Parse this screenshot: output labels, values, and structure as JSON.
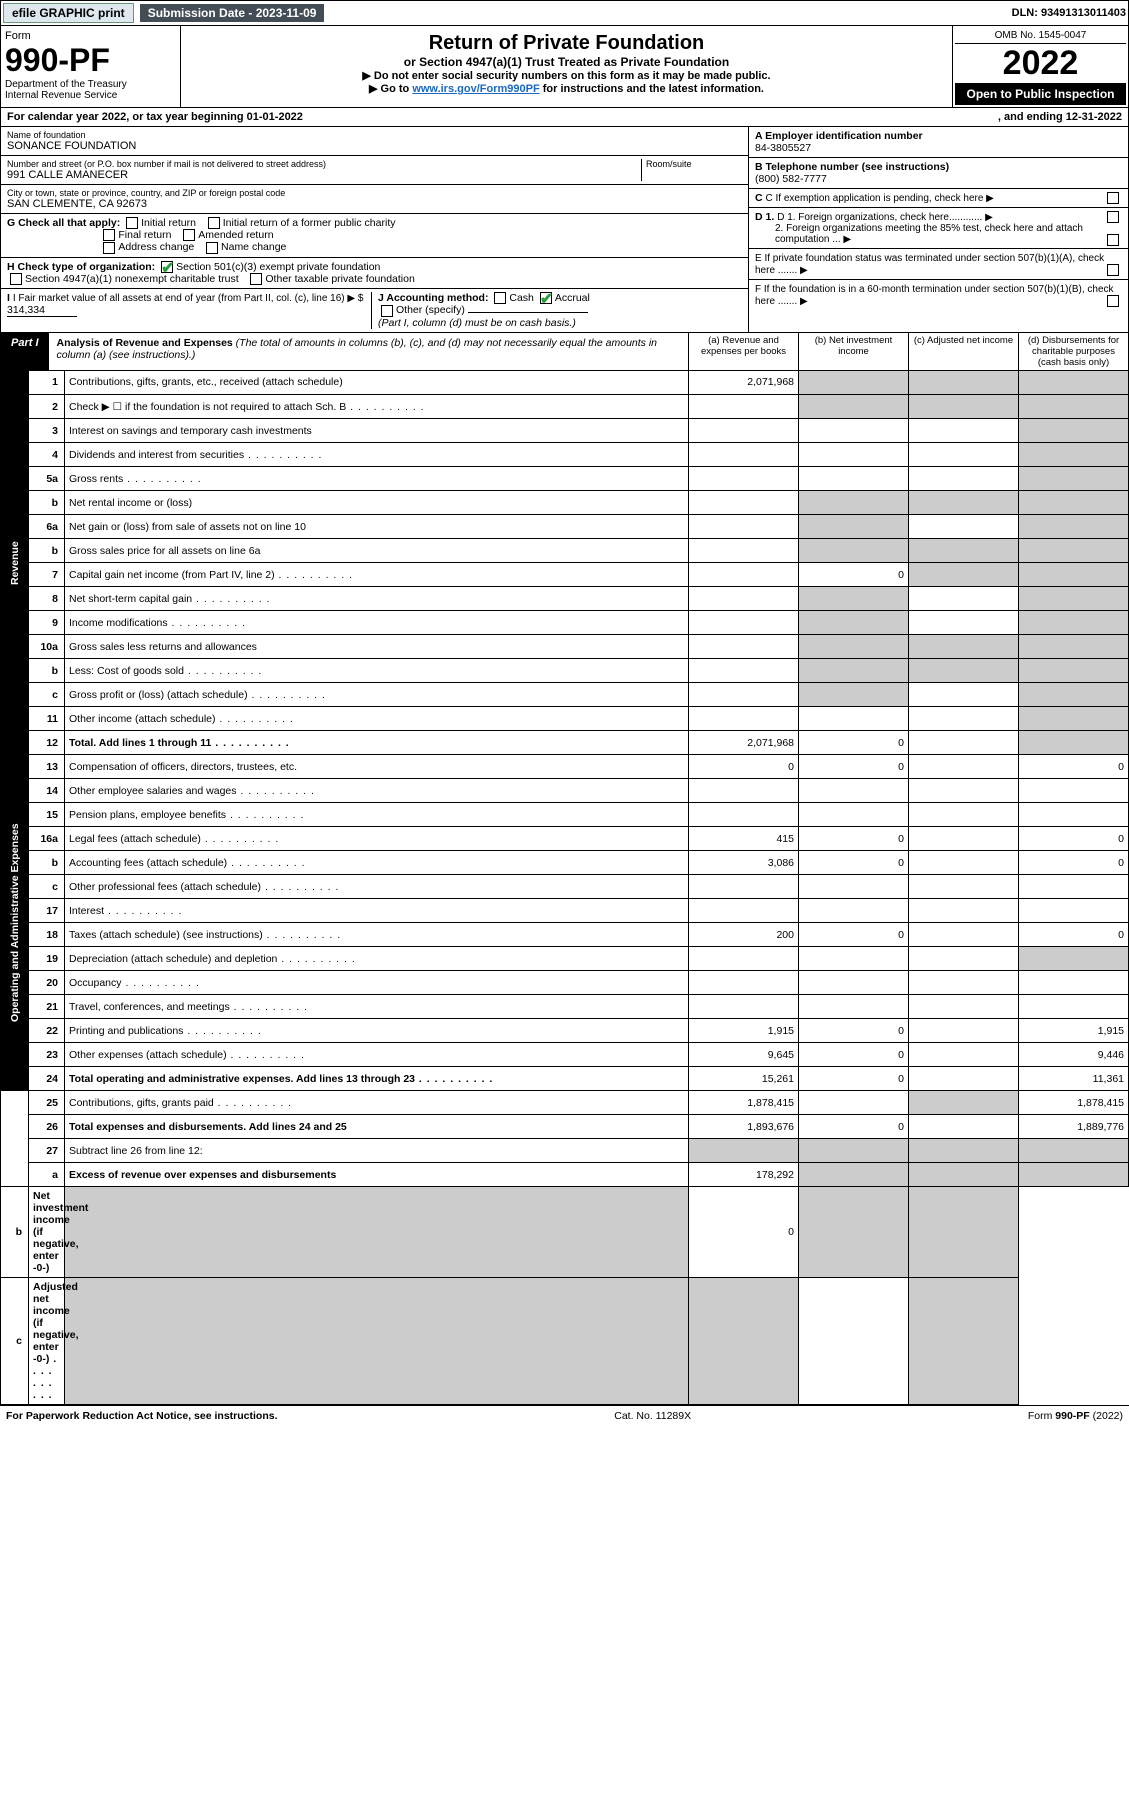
{
  "topbar": {
    "efile": "efile GRAPHIC print",
    "subdate_label": "Submission Date - 2023-11-09",
    "dln": "DLN: 93491313011403"
  },
  "header": {
    "form_label": "Form",
    "form_no": "990-PF",
    "dept1": "Department of the Treasury",
    "dept2": "Internal Revenue Service",
    "title": "Return of Private Foundation",
    "subtitle": "or Section 4947(a)(1) Trust Treated as Private Foundation",
    "note1": "▶ Do not enter social security numbers on this form as it may be made public.",
    "note2_pre": "▶ Go to ",
    "note2_link": "www.irs.gov/Form990PF",
    "note2_post": " for instructions and the latest information.",
    "omb": "OMB No. 1545-0047",
    "year": "2022",
    "open": "Open to Public Inspection"
  },
  "calendar": {
    "text_l": "For calendar year 2022, or tax year beginning 01-01-2022",
    "text_r": ", and ending 12-31-2022"
  },
  "entity": {
    "name_label": "Name of foundation",
    "name": "SONANCE FOUNDATION",
    "addr_label": "Number and street (or P.O. box number if mail is not delivered to street address)",
    "addr": "991 CALLE AMANECER",
    "room_label": "Room/suite",
    "city_label": "City or town, state or province, country, and ZIP or foreign postal code",
    "city": "SAN CLEMENTE, CA  92673",
    "g_label": "G Check all that apply:",
    "g1": "Initial return",
    "g2": "Final return",
    "g3": "Address change",
    "g4": "Initial return of a former public charity",
    "g5": "Amended return",
    "g6": "Name change",
    "h_label": "H Check type of organization:",
    "h1": "Section 501(c)(3) exempt private foundation",
    "h2": "Section 4947(a)(1) nonexempt charitable trust",
    "h3": "Other taxable private foundation",
    "i_label": "I Fair market value of all assets at end of year (from Part II, col. (c), line 16) ▶ $",
    "i_value": "314,334",
    "j_label": "J Accounting method:",
    "j1": "Cash",
    "j2": "Accrual",
    "j3": "Other (specify)",
    "j_note": "(Part I, column (d) must be on cash basis.)"
  },
  "right": {
    "a_label": "A Employer identification number",
    "a_value": "84-3805527",
    "b_label": "B Telephone number (see instructions)",
    "b_value": "(800) 582-7777",
    "c_label": "C If exemption application is pending, check here ▶",
    "d1": "D 1. Foreign organizations, check here............ ▶",
    "d2": "2. Foreign organizations meeting the 85% test, check here and attach computation ... ▶",
    "e_label": "E  If private foundation status was terminated under section 507(b)(1)(A), check here ....... ▶",
    "f_label": "F  If the foundation is in a 60-month termination under section 507(b)(1)(B), check here ....... ▶"
  },
  "part1": {
    "label": "Part I",
    "title": "Analysis of Revenue and Expenses",
    "desc": " (The total of amounts in columns (b), (c), and (d) may not necessarily equal the amounts in column (a) (see instructions).)",
    "col_a": "(a)  Revenue and expenses per books",
    "col_b": "(b)  Net investment income",
    "col_c": "(c)  Adjusted net income",
    "col_d": "(d)  Disbursements for charitable purposes (cash basis only)"
  },
  "sections": {
    "revenue": "Revenue",
    "expenses": "Operating and Administrative Expenses"
  },
  "rows": [
    {
      "n": "1",
      "d": "Contributions, gifts, grants, etc., received (attach schedule)",
      "a": "2,071,968",
      "a_shade": false,
      "b_shade": true,
      "c_shade": true,
      "d_shade": true
    },
    {
      "n": "2",
      "d": "Check ▶ ☐ if the foundation is not required to attach Sch. B",
      "dots": true,
      "b_shade": true,
      "c_shade": true,
      "d_shade": true
    },
    {
      "n": "3",
      "d": "Interest on savings and temporary cash investments",
      "d_shade": true
    },
    {
      "n": "4",
      "d": "Dividends and interest from securities",
      "dots": true,
      "d_shade": true
    },
    {
      "n": "5a",
      "d": "Gross rents",
      "dots": true,
      "d_shade": true
    },
    {
      "n": "b",
      "d": "Net rental income or (loss)",
      "b_shade": true,
      "c_shade": true,
      "d_shade": true
    },
    {
      "n": "6a",
      "d": "Net gain or (loss) from sale of assets not on line 10",
      "b_shade": true,
      "d_shade": true
    },
    {
      "n": "b",
      "d": "Gross sales price for all assets on line 6a",
      "b_shade": true,
      "c_shade": true,
      "d_shade": true
    },
    {
      "n": "7",
      "d": "Capital gain net income (from Part IV, line 2)",
      "dots": true,
      "b": "0",
      "c_shade": true,
      "d_shade": true
    },
    {
      "n": "8",
      "d": "Net short-term capital gain",
      "dots": true,
      "b_shade": true,
      "d_shade": true
    },
    {
      "n": "9",
      "d": "Income modifications",
      "dots": true,
      "b_shade": true,
      "d_shade": true
    },
    {
      "n": "10a",
      "d": "Gross sales less returns and allowances",
      "b_shade": true,
      "c_shade": true,
      "d_shade": true
    },
    {
      "n": "b",
      "d": "Less: Cost of goods sold",
      "dots": true,
      "b_shade": true,
      "c_shade": true,
      "d_shade": true
    },
    {
      "n": "c",
      "d": "Gross profit or (loss) (attach schedule)",
      "dots": true,
      "b_shade": true,
      "d_shade": true
    },
    {
      "n": "11",
      "d": "Other income (attach schedule)",
      "dots": true,
      "d_shade": true
    },
    {
      "n": "12",
      "d": "Total. Add lines 1 through 11",
      "dots": true,
      "bold": true,
      "a": "2,071,968",
      "b": "0",
      "d_shade": true
    },
    {
      "n": "13",
      "d": "Compensation of officers, directors, trustees, etc.",
      "a": "0",
      "b": "0",
      "dd": "0"
    },
    {
      "n": "14",
      "d": "Other employee salaries and wages",
      "dots": true
    },
    {
      "n": "15",
      "d": "Pension plans, employee benefits",
      "dots": true
    },
    {
      "n": "16a",
      "d": "Legal fees (attach schedule)",
      "dots": true,
      "a": "415",
      "b": "0",
      "dd": "0"
    },
    {
      "n": "b",
      "d": "Accounting fees (attach schedule)",
      "dots": true,
      "a": "3,086",
      "b": "0",
      "dd": "0"
    },
    {
      "n": "c",
      "d": "Other professional fees (attach schedule)",
      "dots": true
    },
    {
      "n": "17",
      "d": "Interest",
      "dots": true
    },
    {
      "n": "18",
      "d": "Taxes (attach schedule) (see instructions)",
      "dots": true,
      "a": "200",
      "b": "0",
      "dd": "0"
    },
    {
      "n": "19",
      "d": "Depreciation (attach schedule) and depletion",
      "dots": true,
      "d_shade": true
    },
    {
      "n": "20",
      "d": "Occupancy",
      "dots": true
    },
    {
      "n": "21",
      "d": "Travel, conferences, and meetings",
      "dots": true
    },
    {
      "n": "22",
      "d": "Printing and publications",
      "dots": true,
      "a": "1,915",
      "b": "0",
      "dd": "1,915"
    },
    {
      "n": "23",
      "d": "Other expenses (attach schedule)",
      "dots": true,
      "a": "9,645",
      "b": "0",
      "dd": "9,446"
    },
    {
      "n": "24",
      "d": "Total operating and administrative expenses. Add lines 13 through 23",
      "dots": true,
      "bold": true,
      "a": "15,261",
      "b": "0",
      "dd": "11,361"
    },
    {
      "n": "25",
      "d": "Contributions, gifts, grants paid",
      "dots": true,
      "a": "1,878,415",
      "c_shade": true,
      "dd": "1,878,415"
    },
    {
      "n": "26",
      "d": "Total expenses and disbursements. Add lines 24 and 25",
      "bold": true,
      "a": "1,893,676",
      "b": "0",
      "dd": "1,889,776"
    },
    {
      "n": "27",
      "d": "Subtract line 26 from line 12:",
      "a_shade": true,
      "b_shade": true,
      "c_shade": true,
      "d_shade": true
    },
    {
      "n": "a",
      "d": "Excess of revenue over expenses and disbursements",
      "bold": true,
      "a": "178,292",
      "b_shade": true,
      "c_shade": true,
      "d_shade": true
    },
    {
      "n": "b",
      "d": "Net investment income (if negative, enter -0-)",
      "bold": true,
      "a_shade": true,
      "b": "0",
      "c_shade": true,
      "d_shade": true
    },
    {
      "n": "c",
      "d": "Adjusted net income (if negative, enter -0-)",
      "dots": true,
      "bold": true,
      "a_shade": true,
      "b_shade": true,
      "d_shade": true
    }
  ],
  "footer": {
    "left": "For Paperwork Reduction Act Notice, see instructions.",
    "mid": "Cat. No. 11289X",
    "right": "Form 990-PF (2022)"
  }
}
